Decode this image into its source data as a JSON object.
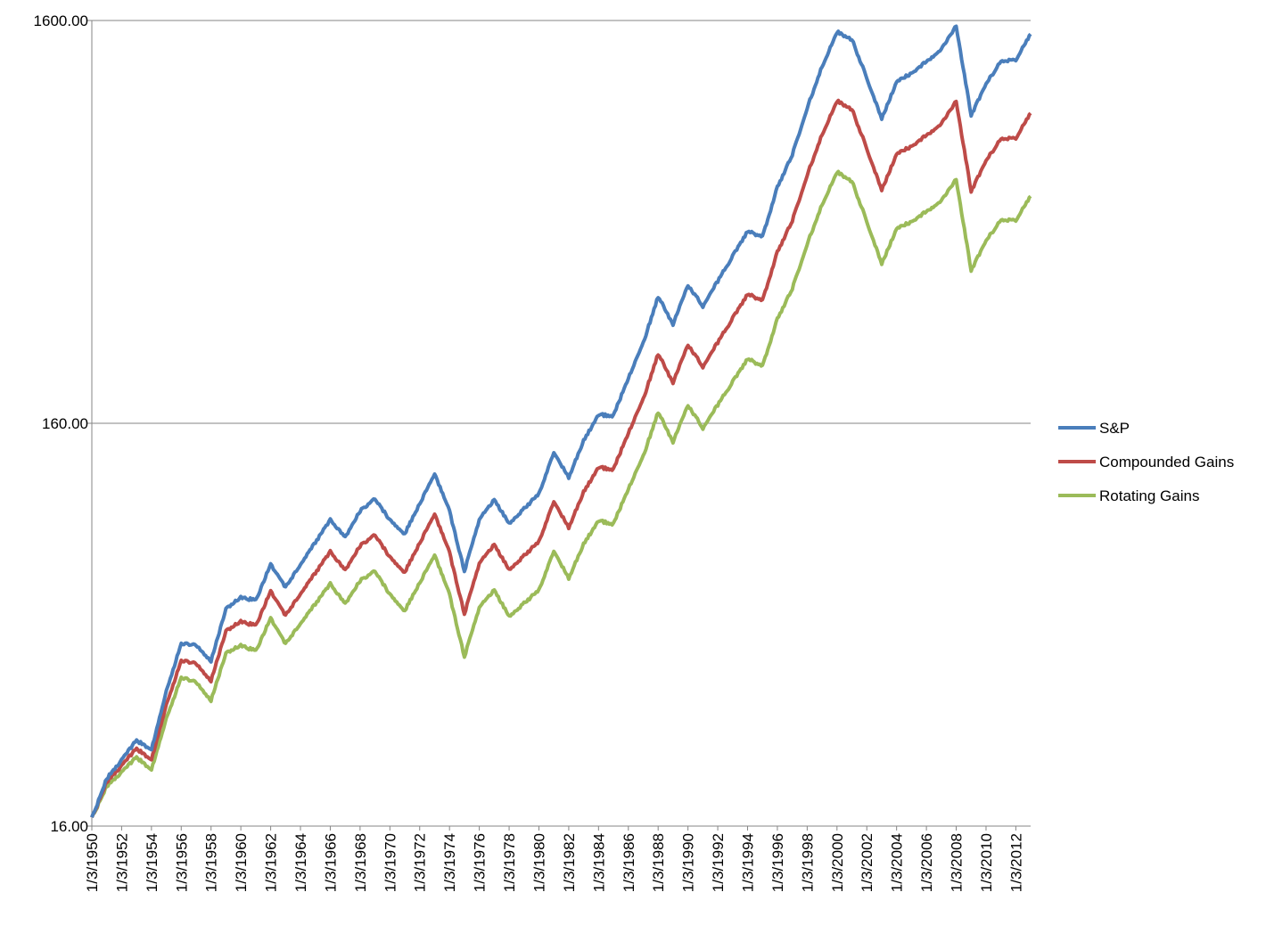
{
  "chart_data": {
    "type": "line",
    "y_scale": "log",
    "ylim": [
      16,
      1600
    ],
    "xlim": [
      "1/3/1950",
      "12/31/2012"
    ],
    "y_ticks": [
      {
        "value": 16,
        "label": "16.00"
      },
      {
        "value": 160,
        "label": "160.00"
      },
      {
        "value": 1600,
        "label": "1600.00"
      }
    ],
    "x_ticks": [
      "1/3/1950",
      "1/3/1952",
      "1/3/1954",
      "1/3/1956",
      "1/3/1958",
      "1/3/1960",
      "1/3/1962",
      "1/3/1964",
      "1/3/1966",
      "1/3/1968",
      "1/3/1970",
      "1/3/1972",
      "1/3/1974",
      "1/3/1976",
      "1/3/1978",
      "1/3/1980",
      "1/3/1982",
      "1/3/1984",
      "1/3/1986",
      "1/3/1988",
      "1/3/1990",
      "1/3/1992",
      "1/3/1994",
      "1/3/1996",
      "1/3/1998",
      "1/3/2000",
      "1/3/2002",
      "1/3/2004",
      "1/3/2006",
      "1/3/2008",
      "1/3/2010",
      "1/3/2012"
    ],
    "grid": "horizontal major",
    "legend_position": "right",
    "x": [
      "1/3/1950",
      "1/3/1951",
      "1/3/1953",
      "1/3/1954",
      "1/3/1955",
      "1/3/1956",
      "1/3/1957",
      "1/3/1958",
      "1/3/1959",
      "1/3/1960",
      "1/3/1961",
      "1/3/1962",
      "1/3/1963",
      "1/3/1966",
      "1/3/1967",
      "1/3/1968",
      "1/3/1969",
      "1/3/1970",
      "1/3/1971",
      "1/3/1973",
      "1/3/1974",
      "1/3/1975",
      "1/3/1976",
      "1/3/1977",
      "1/3/1978",
      "1/3/1980",
      "1/3/1981",
      "1/3/1982",
      "1/3/1983",
      "1/3/1984",
      "1/3/1985",
      "1/3/1986",
      "1/3/1987",
      "1/3/1988",
      "1/3/1989",
      "1/3/1990",
      "1/3/1991",
      "1/3/1994",
      "1/3/1995",
      "1/3/1996",
      "1/3/1997",
      "1/3/1998",
      "1/3/1999",
      "1/3/2000",
      "1/3/2001",
      "1/3/2002",
      "1/3/2003",
      "1/3/2004",
      "1/3/2005",
      "1/3/2007",
      "1/3/2008",
      "1/3/2009",
      "1/3/2010",
      "1/3/2011",
      "1/3/2012",
      "12/31/2012"
    ],
    "series": [
      {
        "name": "S&P",
        "color": "#4a7ebb",
        "values": [
          16.7,
          21.0,
          26.1,
          24.8,
          34.6,
          45.4,
          45.1,
          41.1,
          55.4,
          59.2,
          58.1,
          71.6,
          62.7,
          92.0,
          83.2,
          97.0,
          104.0,
          92.1,
          85.1,
          119.9,
          96.8,
          68.7,
          92.2,
          103.4,
          90.1,
          107.0,
          135.8,
          117.1,
          144.8,
          167.9,
          167.2,
          207.2,
          253.1,
          330.2,
          281.9,
          352.6,
          312.8,
          480.0,
          464.7,
          616.5,
          742.5,
          970.4,
          1230.0,
          1500.0,
          1434.0,
          1154.0,
          911.0,
          1127.0,
          1184.0,
          1355.0,
          1550.0,
          931.0,
          1112.0,
          1270.0,
          1278.0,
          1480.0
        ]
      },
      {
        "name": "Compounded Gains",
        "color": "#be4b48",
        "values": [
          16.7,
          20.6,
          24.9,
          23.4,
          32.0,
          41.2,
          40.6,
          36.7,
          48.8,
          51.6,
          50.3,
          61.4,
          53.4,
          76.7,
          68.9,
          79.5,
          84.6,
          74.5,
          68.3,
          95.3,
          76.4,
          53.8,
          71.8,
          80.0,
          69.2,
          81.4,
          102.6,
          87.9,
          108.0,
          124.3,
          123.0,
          151.4,
          183.6,
          238.0,
          202.0,
          250.9,
          221.3,
          335.0,
          322.7,
          425.5,
          509.2,
          661.5,
          833.5,
          1011.0,
          962.0,
          771.0,
          606.0,
          746.0,
          780.0,
          885.0,
          1008.0,
          603.0,
          717.0,
          815.0,
          817.0,
          942.0
        ]
      },
      {
        "name": "Rotating Gains",
        "color": "#9bbb59",
        "values": [
          16.7,
          20.1,
          23.7,
          22.1,
          29.6,
          37.4,
          36.5,
          32.8,
          43.0,
          45.0,
          43.5,
          52.6,
          45.4,
          63.8,
          56.9,
          65.1,
          68.8,
          60.2,
          54.8,
          75.4,
          60.1,
          42.1,
          55.8,
          61.7,
          53.0,
          61.7,
          77.3,
          65.8,
          80.2,
          91.6,
          90.0,
          110.0,
          132.5,
          170.6,
          143.9,
          177.6,
          155.8,
          231.5,
          221.7,
          290.3,
          345.3,
          445.9,
          558.6,
          673.6,
          637.7,
          508.3,
          397.5,
          486.9,
          506.7,
          570.1,
          645.1,
          383.6,
          453.7,
          512.4,
          511.0,
          586.0
        ]
      }
    ]
  }
}
